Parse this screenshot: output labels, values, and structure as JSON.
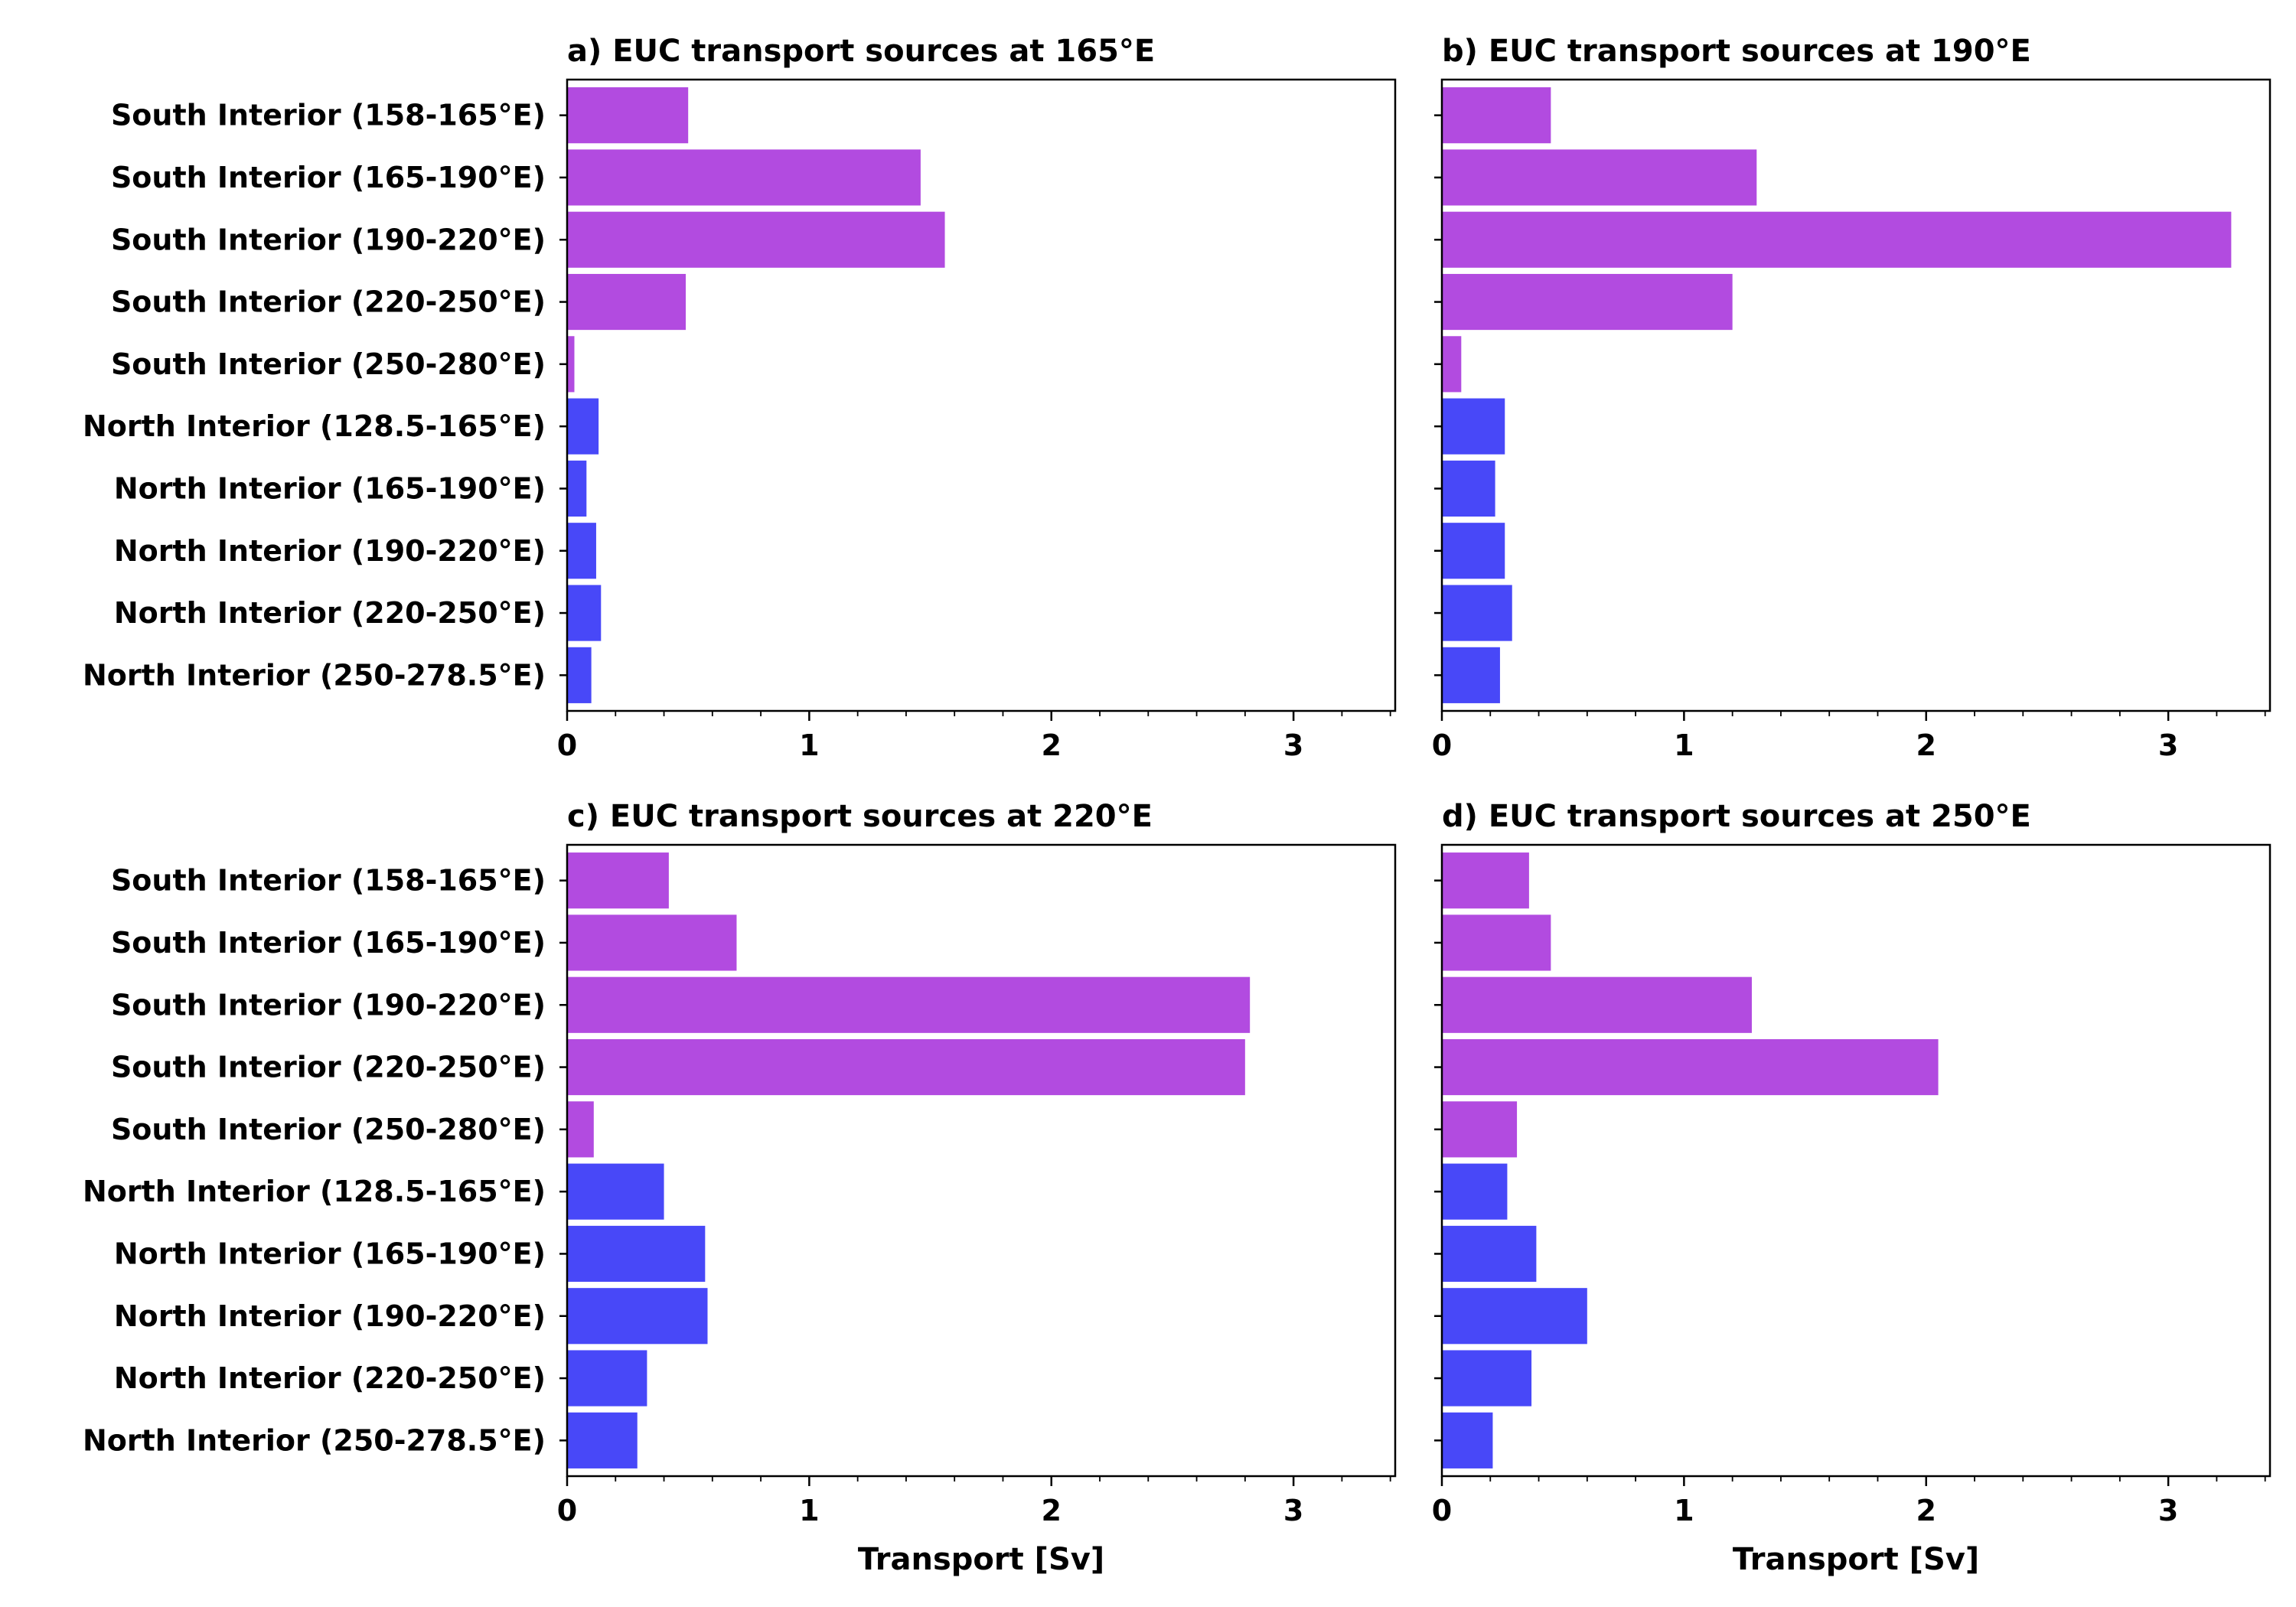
{
  "chart_data": [
    {
      "type": "bar",
      "orientation": "horizontal",
      "title": "a) EUC transport sources at 165°E",
      "xlabel": "",
      "xlim": [
        0,
        3.42
      ],
      "xticks": [
        0,
        1,
        2,
        3
      ],
      "categories": [
        "South Interior (158-165°E)",
        "South Interior (165-190°E)",
        "South Interior (190-220°E)",
        "South Interior (220-250°E)",
        "South Interior (250-280°E)",
        "North Interior (128.5-165°E)",
        "North Interior (165-190°E)",
        "North Interior (190-220°E)",
        "North Interior (220-250°E)",
        "North Interior (250-278.5°E)"
      ],
      "values": [
        0.5,
        1.46,
        1.56,
        0.49,
        0.03,
        0.13,
        0.08,
        0.12,
        0.14,
        0.1
      ]
    },
    {
      "type": "bar",
      "orientation": "horizontal",
      "title": "b) EUC transport sources at 190°E",
      "xlabel": "",
      "xlim": [
        0,
        3.42
      ],
      "xticks": [
        0,
        1,
        2,
        3
      ],
      "categories": [
        "South Interior (158-165°E)",
        "South Interior (165-190°E)",
        "South Interior (190-220°E)",
        "South Interior (220-250°E)",
        "South Interior (250-280°E)",
        "North Interior (128.5-165°E)",
        "North Interior (165-190°E)",
        "North Interior (190-220°E)",
        "North Interior (220-250°E)",
        "North Interior (250-278.5°E)"
      ],
      "values": [
        0.45,
        1.3,
        3.26,
        1.2,
        0.08,
        0.26,
        0.22,
        0.26,
        0.29,
        0.24
      ]
    },
    {
      "type": "bar",
      "orientation": "horizontal",
      "title": "c) EUC transport sources at 220°E",
      "xlabel": "Transport [Sv]",
      "xlim": [
        0,
        3.42
      ],
      "xticks": [
        0,
        1,
        2,
        3
      ],
      "categories": [
        "South Interior (158-165°E)",
        "South Interior (165-190°E)",
        "South Interior (190-220°E)",
        "South Interior (220-250°E)",
        "South Interior (250-280°E)",
        "North Interior (128.5-165°E)",
        "North Interior (165-190°E)",
        "North Interior (190-220°E)",
        "North Interior (220-250°E)",
        "North Interior (250-278.5°E)"
      ],
      "values": [
        0.42,
        0.7,
        2.82,
        2.8,
        0.11,
        0.4,
        0.57,
        0.58,
        0.33,
        0.29
      ]
    },
    {
      "type": "bar",
      "orientation": "horizontal",
      "title": "d) EUC transport sources at 250°E",
      "xlabel": "Transport [Sv]",
      "xlim": [
        0,
        3.42
      ],
      "xticks": [
        0,
        1,
        2,
        3
      ],
      "categories": [
        "South Interior (158-165°E)",
        "South Interior (165-190°E)",
        "South Interior (190-220°E)",
        "South Interior (220-250°E)",
        "South Interior (250-280°E)",
        "North Interior (128.5-165°E)",
        "North Interior (165-190°E)",
        "North Interior (190-220°E)",
        "North Interior (220-250°E)",
        "North Interior (250-278.5°E)"
      ],
      "values": [
        0.36,
        0.45,
        1.28,
        2.05,
        0.31,
        0.27,
        0.39,
        0.6,
        0.37,
        0.21
      ]
    }
  ],
  "colors": {
    "south": "#b24be0",
    "north": "#4848f8"
  }
}
